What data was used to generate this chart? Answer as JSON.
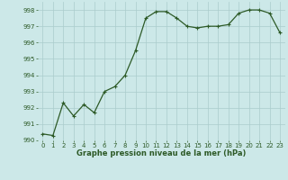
{
  "x": [
    0,
    1,
    2,
    3,
    4,
    5,
    6,
    7,
    8,
    9,
    10,
    11,
    12,
    13,
    14,
    15,
    16,
    17,
    18,
    19,
    20,
    21,
    22,
    23
  ],
  "y": [
    990.4,
    990.3,
    992.3,
    991.5,
    992.2,
    991.7,
    993.0,
    993.3,
    994.0,
    995.5,
    997.5,
    997.9,
    997.9,
    997.5,
    997.0,
    996.9,
    997.0,
    997.0,
    997.1,
    997.8,
    998.0,
    998.0,
    997.8,
    996.6
  ],
  "line_color": "#2d5a27",
  "marker_color": "#2d5a27",
  "bg_color": "#cce8e8",
  "grid_color": "#aacccc",
  "xlabel": "Graphe pression niveau de la mer (hPa)",
  "ylim": [
    990,
    998.5
  ],
  "xlim": [
    -0.5,
    23.5
  ],
  "yticks": [
    990,
    991,
    992,
    993,
    994,
    995,
    996,
    997,
    998
  ],
  "xticks": [
    0,
    1,
    2,
    3,
    4,
    5,
    6,
    7,
    8,
    9,
    10,
    11,
    12,
    13,
    14,
    15,
    16,
    17,
    18,
    19,
    20,
    21,
    22,
    23
  ],
  "tick_fontsize": 5.0,
  "xlabel_fontsize": 6.0,
  "linewidth": 0.9,
  "markersize": 2.2
}
